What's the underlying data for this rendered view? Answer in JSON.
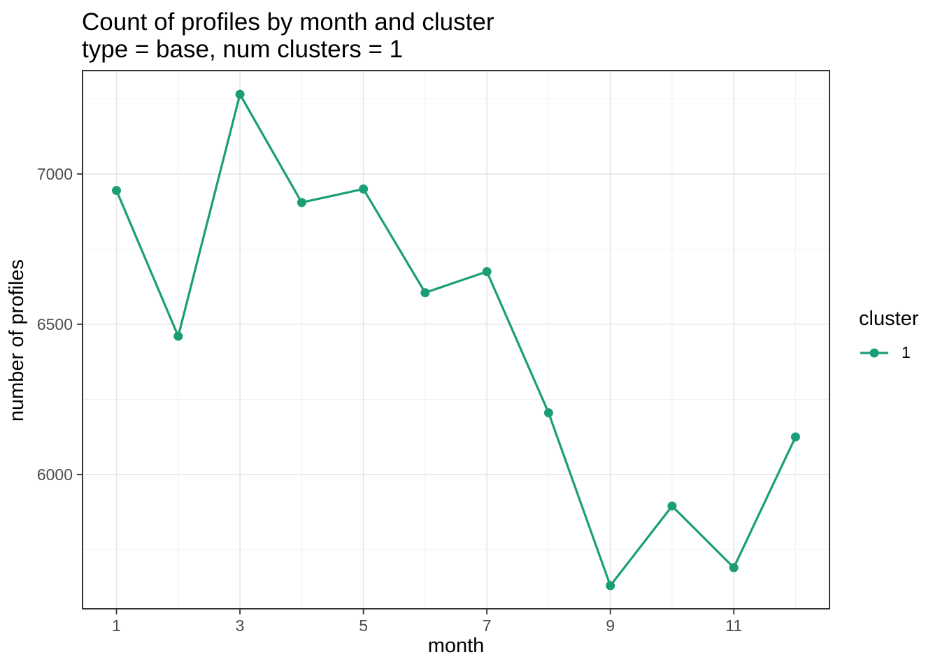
{
  "title": "Count of profiles by month and cluster",
  "subtitle": "type = base, num clusters = 1",
  "axes": {
    "x_label": "month",
    "y_label": "number of profiles",
    "x_tick_labels": [
      "1",
      "3",
      "5",
      "7",
      "9",
      "11"
    ],
    "y_tick_labels": [
      "6000",
      "6500",
      "7000"
    ]
  },
  "legend": {
    "title": "cluster",
    "entries": [
      {
        "label": "1",
        "color": "#1b9e77"
      }
    ]
  },
  "colors": {
    "series": "#1b9e77",
    "grid_major": "#e6e6e6",
    "grid_minor": "#f1f1f1",
    "panel_border": "#333333",
    "axis_tick": "#333333",
    "tick_text": "#4d4d4d",
    "panel_background": "#ffffff"
  },
  "chart_data": {
    "type": "line",
    "title": "Count of profiles by month and cluster",
    "subtitle": "type = base, num clusters = 1",
    "xlabel": "month",
    "ylabel": "number of profiles",
    "x": [
      1,
      2,
      3,
      4,
      5,
      6,
      7,
      8,
      9,
      10,
      11,
      12
    ],
    "series": [
      {
        "name": "1",
        "color": "#1b9e77",
        "values": [
          6945,
          6460,
          7265,
          6905,
          6950,
          6605,
          6675,
          6205,
          5630,
          5895,
          5690,
          6125
        ]
      }
    ],
    "xlim": [
      0.45,
      12.55
    ],
    "ylim": [
      5553,
      7344
    ],
    "x_major_ticks": [
      1,
      3,
      5,
      7,
      9,
      11
    ],
    "x_minor_ticks": [
      2,
      4,
      6,
      8,
      10,
      12
    ],
    "y_major_ticks": [
      6000,
      6500,
      7000
    ],
    "y_minor_ticks": [
      5750,
      6250,
      6750,
      7250
    ],
    "grid": true,
    "legend_position": "right",
    "legend_title": "cluster",
    "marker": "circle",
    "marker_radius": 6.5,
    "line_width": 3.2
  }
}
